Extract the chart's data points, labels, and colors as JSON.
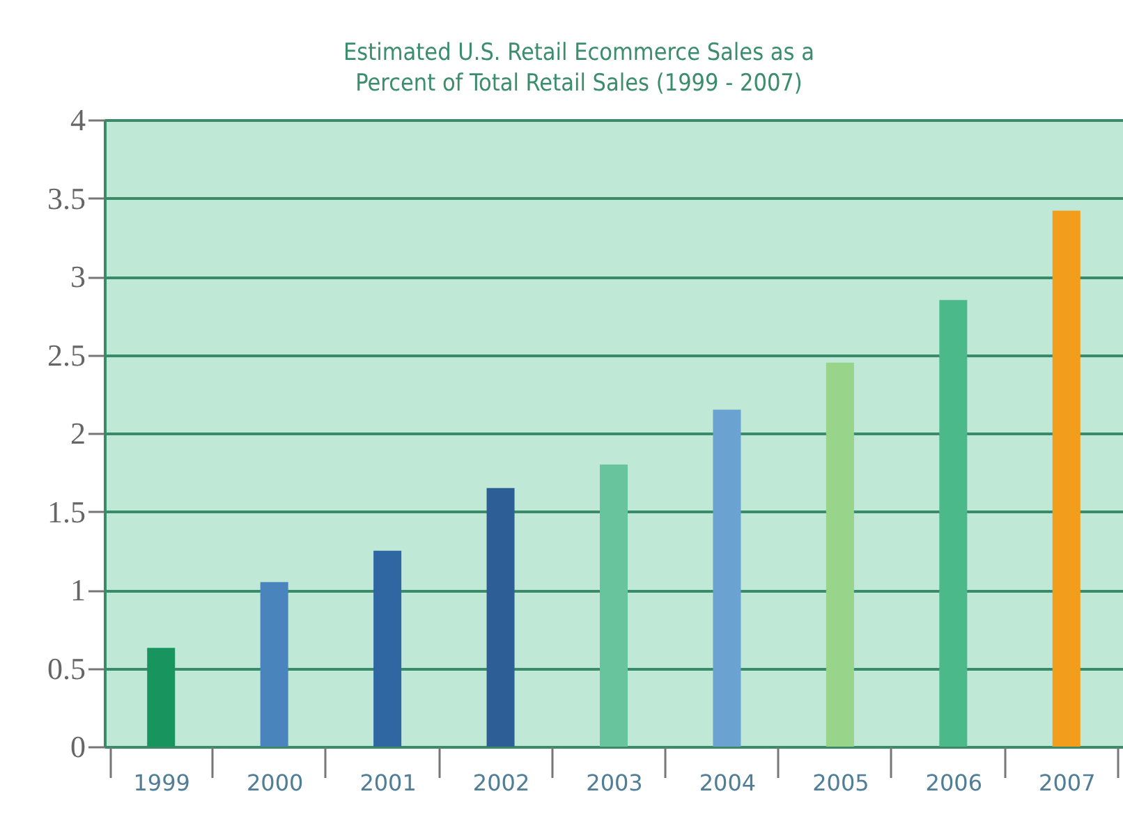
{
  "chart_data": {
    "type": "bar",
    "title": "Estimated U.S. Retail Ecommerce Sales as a Percent of Total Retail Sales (1999 - 2007)",
    "categories": [
      "1999",
      "2000",
      "2001",
      "2002",
      "2003",
      "2004",
      "2005",
      "2006",
      "2007"
    ],
    "values": [
      0.63,
      1.05,
      1.25,
      1.65,
      1.8,
      2.15,
      2.45,
      2.85,
      3.42
    ],
    "colors": [
      "#18955e",
      "#4a84bc",
      "#2f67a2",
      "#2d5f96",
      "#68c49c",
      "#6aa2d2",
      "#98d489",
      "#4cb98a",
      "#f29d1c"
    ],
    "ylim": [
      0,
      4
    ],
    "yticks": [
      0,
      0.5,
      1,
      1.5,
      2,
      2.5,
      3,
      3.5,
      4
    ],
    "grid": "y",
    "legend": false
  }
}
